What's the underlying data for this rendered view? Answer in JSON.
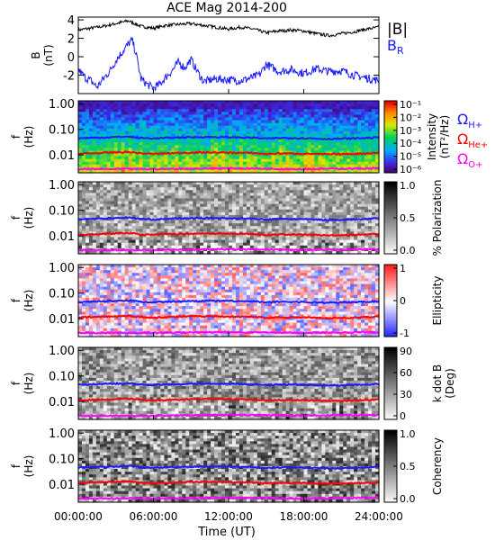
{
  "title": "ACE Mag 2014-200",
  "x_axis": {
    "label": "Time (UT)",
    "ticks": [
      "00:00:00",
      "06:00:00",
      "12:00:00",
      "18:00:00",
      "24:00:00"
    ],
    "range_hours": [
      0,
      24
    ]
  },
  "legend_b": {
    "total": "|B|",
    "radial": "B",
    "radial_sub": "R"
  },
  "colors": {
    "btotal": "#000000",
    "bradial": "#1a1aff",
    "h_plus": "#1a1aff",
    "he_plus": "#ff0000",
    "o_plus": "#ff00ff"
  },
  "gyro_legend": [
    {
      "symbol": "Ω",
      "sub": "H+",
      "color": "#1a1aff"
    },
    {
      "symbol": "Ω",
      "sub": "He+",
      "color": "#ff0000"
    },
    {
      "symbol": "Ω",
      "sub": "O+",
      "color": "#ff00ff"
    }
  ],
  "chart_data": [
    {
      "type": "line",
      "ylabel": "B",
      "ylabel_unit": "(nT)",
      "yticks": [
        "4",
        "2",
        "0",
        "-2"
      ],
      "ylim": [
        -4,
        4.3
      ],
      "series": [
        {
          "name": "|B|",
          "points": [
            [
              0,
              2.9
            ],
            [
              1,
              3.1
            ],
            [
              2,
              3.3
            ],
            [
              3,
              3.6
            ],
            [
              4,
              3.9
            ],
            [
              5,
              3.3
            ],
            [
              6,
              3.1
            ],
            [
              7,
              3.4
            ],
            [
              8,
              3.5
            ],
            [
              9,
              3.6
            ],
            [
              10,
              3.4
            ],
            [
              11,
              3.2
            ],
            [
              12,
              3.0
            ],
            [
              13,
              3.2
            ],
            [
              14,
              3.0
            ],
            [
              15,
              2.6
            ],
            [
              16,
              2.8
            ],
            [
              17,
              2.9
            ],
            [
              18,
              2.8
            ],
            [
              19,
              2.5
            ],
            [
              20,
              2.3
            ],
            [
              21,
              2.5
            ],
            [
              22,
              2.7
            ],
            [
              23,
              3.0
            ],
            [
              24,
              3.2
            ]
          ]
        },
        {
          "name": "B_R",
          "points": [
            [
              0,
              -1.4
            ],
            [
              0.5,
              -2.2
            ],
            [
              1,
              -2.6
            ],
            [
              1.5,
              -3.3
            ],
            [
              2,
              -2.4
            ],
            [
              2.5,
              -1.6
            ],
            [
              3,
              -0.4
            ],
            [
              3.5,
              0.5
            ],
            [
              4,
              1.4
            ],
            [
              4.3,
              1.8
            ],
            [
              4.6,
              0.4
            ],
            [
              5,
              -2.4
            ],
            [
              5.5,
              -3.0
            ],
            [
              6,
              -3.4
            ],
            [
              6.5,
              -3.0
            ],
            [
              7,
              -2.2
            ],
            [
              7.5,
              -1.5
            ],
            [
              8,
              -0.6
            ],
            [
              8.5,
              -1.2
            ],
            [
              9,
              -0.3
            ],
            [
              9.5,
              -1.6
            ],
            [
              10,
              -2.7
            ],
            [
              11,
              -2.4
            ],
            [
              12,
              -2.5
            ],
            [
              13,
              -2.6
            ],
            [
              14,
              -2.2
            ],
            [
              14.5,
              -1.9
            ],
            [
              15,
              -0.8
            ],
            [
              15.5,
              -1.2
            ],
            [
              16,
              -1.6
            ],
            [
              17,
              -1.4
            ],
            [
              18,
              -1.8
            ],
            [
              19,
              -1.3
            ],
            [
              20,
              -1.6
            ],
            [
              21,
              -1.5
            ],
            [
              22,
              -2.0
            ],
            [
              23,
              -2.3
            ],
            [
              24,
              -2.6
            ]
          ]
        }
      ]
    },
    {
      "type": "heatmap",
      "ylabel": "f",
      "ylabel_unit": "(Hz)",
      "yticks": [
        "1.00",
        "0.10",
        "0.01"
      ],
      "colorbar": {
        "label": "Intensity",
        "unit": "(nT²/Hz)",
        "ticks": [
          "10⁻¹",
          "10⁻²",
          "10⁻³",
          "10⁻⁴",
          "10⁻⁵",
          "10⁻⁶"
        ],
        "scale": "rainbow"
      }
    },
    {
      "type": "heatmap",
      "ylabel": "f",
      "ylabel_unit": "(Hz)",
      "yticks": [
        "1.00",
        "0.10",
        "0.01"
      ],
      "colorbar": {
        "label": "% Polarization",
        "ticks": [
          "1.0",
          "0.5",
          "0.0"
        ],
        "scale": "gray"
      }
    },
    {
      "type": "heatmap",
      "ylabel": "f",
      "ylabel_unit": "(Hz)",
      "yticks": [
        "1.00",
        "0.10",
        "0.01"
      ],
      "colorbar": {
        "label": "Ellipticity",
        "ticks": [
          "1",
          "0",
          "-1"
        ],
        "scale": "bwr"
      }
    },
    {
      "type": "heatmap",
      "ylabel": "f",
      "ylabel_unit": "(Hz)",
      "yticks": [
        "1.00",
        "0.10",
        "0.01"
      ],
      "colorbar": {
        "label": "k dot B",
        "unit": "(Deg)",
        "ticks": [
          "90",
          "60",
          "30",
          "0"
        ],
        "scale": "gray"
      }
    },
    {
      "type": "heatmap",
      "ylabel": "f",
      "ylabel_unit": "(Hz)",
      "yticks": [
        "1.00",
        "0.10",
        "0.01"
      ],
      "colorbar": {
        "label": "Coherency",
        "ticks": [
          "1.0",
          "0.5",
          "0.0"
        ],
        "scale": "gray"
      }
    }
  ],
  "gyrofrequencies": {
    "h_plus": [
      [
        0,
        0.045
      ],
      [
        2,
        0.048
      ],
      [
        4,
        0.052
      ],
      [
        5,
        0.046
      ],
      [
        6,
        0.044
      ],
      [
        8,
        0.048
      ],
      [
        10,
        0.05
      ],
      [
        12,
        0.049
      ],
      [
        14,
        0.047
      ],
      [
        15,
        0.043
      ],
      [
        16,
        0.046
      ],
      [
        18,
        0.045
      ],
      [
        20,
        0.042
      ],
      [
        22,
        0.044
      ],
      [
        24,
        0.048
      ]
    ],
    "he_plus": [
      [
        0,
        0.011
      ],
      [
        2,
        0.012
      ],
      [
        4,
        0.013
      ],
      [
        5,
        0.0115
      ],
      [
        6,
        0.011
      ],
      [
        8,
        0.012
      ],
      [
        10,
        0.0125
      ],
      [
        12,
        0.0122
      ],
      [
        14,
        0.0118
      ],
      [
        15,
        0.0108
      ],
      [
        16,
        0.0115
      ],
      [
        18,
        0.0112
      ],
      [
        20,
        0.0105
      ],
      [
        22,
        0.011
      ],
      [
        24,
        0.012
      ]
    ],
    "o_plus": [
      [
        0,
        0.0028
      ],
      [
        6,
        0.0028
      ],
      [
        12,
        0.003
      ],
      [
        18,
        0.0028
      ],
      [
        24,
        0.003
      ]
    ]
  }
}
